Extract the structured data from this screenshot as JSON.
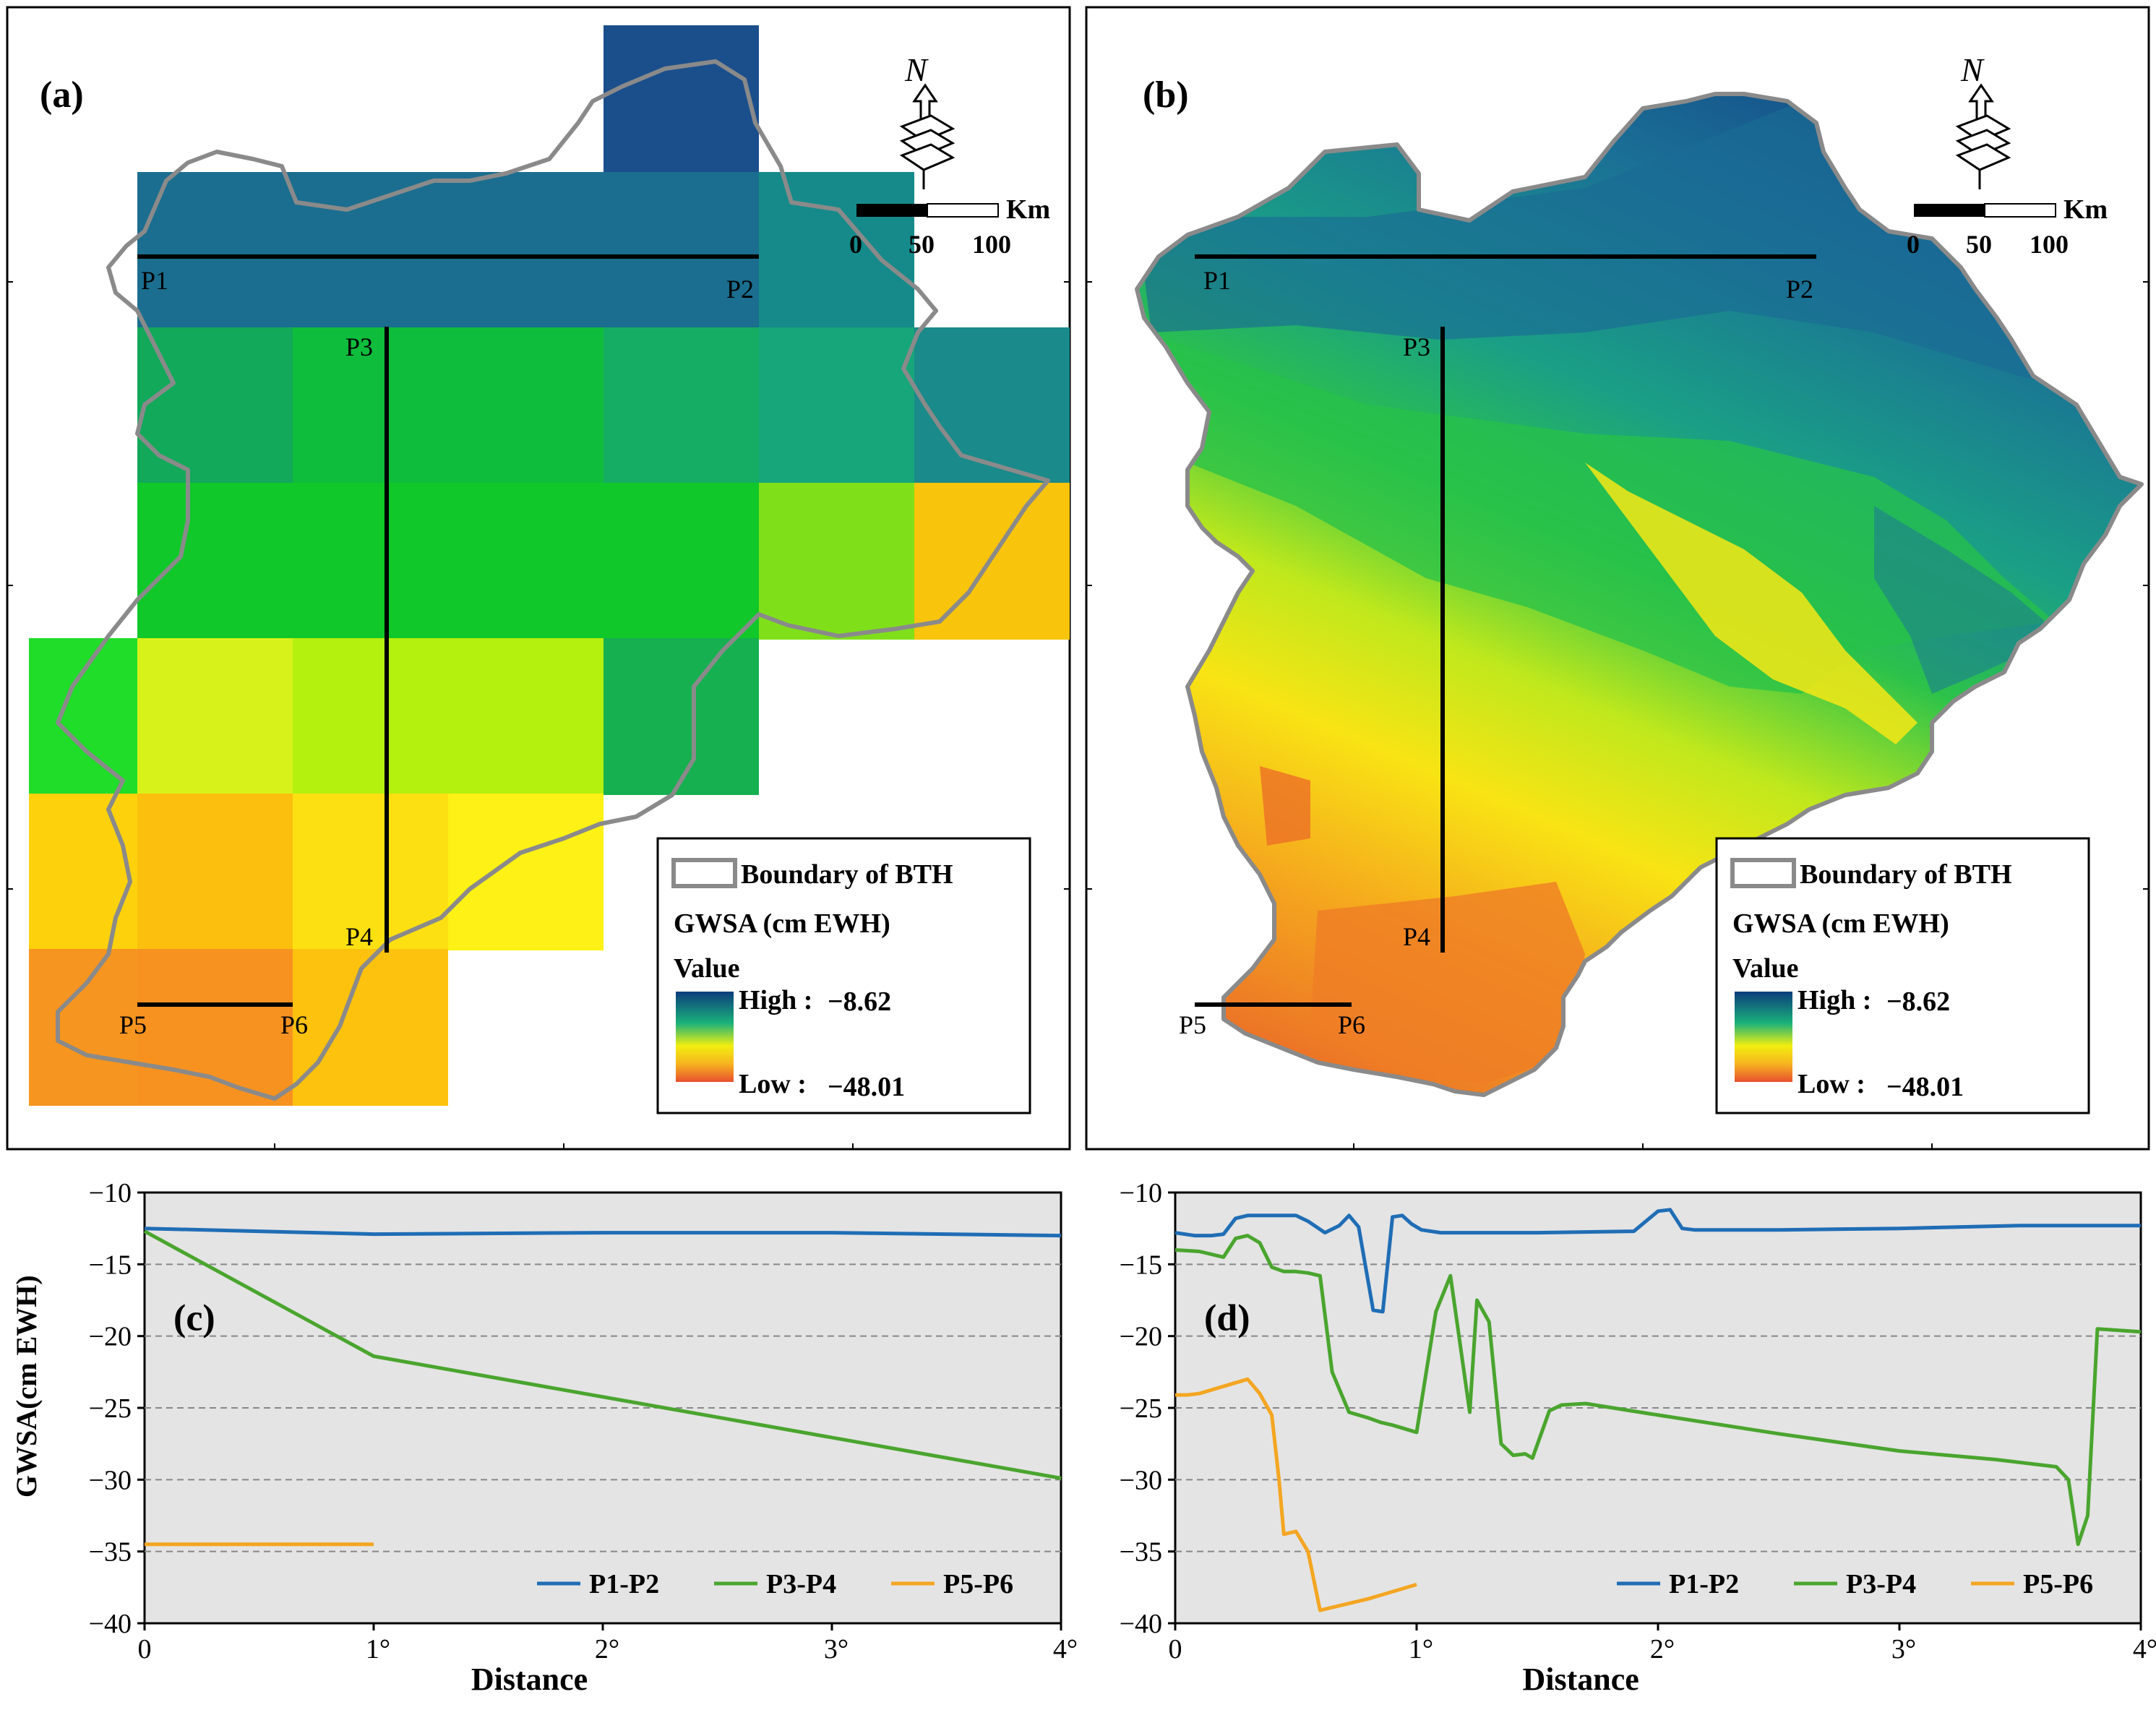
{
  "colors": {
    "line_p1p2": "#1f6db5",
    "line_p3p4": "#4aa52e",
    "line_p5p6": "#f4a622",
    "plot_bg": "#e4e4e4",
    "high": "#0b3c7d",
    "low": "#e8502e",
    "grid": "#888888"
  },
  "map_a": {
    "label": "(a)",
    "north": "N",
    "scale_unit": "Km",
    "scale_ticks": [
      "0",
      "50",
      "100"
    ],
    "points": [
      "P1",
      "P2",
      "P3",
      "P4",
      "P5",
      "P6"
    ],
    "legend": {
      "boundary_label": "Boundary of BTH",
      "title": "GWSA (cm EWH)",
      "value_label": "Value",
      "high_label": "High :",
      "high_value": "−8.62",
      "low_label": "Low :",
      "low_value": "−48.01"
    }
  },
  "map_b": {
    "label": "(b)",
    "north": "N",
    "scale_unit": "Km",
    "scale_ticks": [
      "0",
      "50",
      "100"
    ],
    "points": [
      "P1",
      "P2",
      "P3",
      "P4",
      "P5",
      "P6"
    ],
    "legend": {
      "boundary_label": "Boundary of BTH",
      "title": "GWSA (cm EWH)",
      "value_label": "Value",
      "high_label": "High :",
      "high_value": "−8.62",
      "low_label": "Low :",
      "low_value": "−48.01"
    }
  },
  "chart_data": [
    {
      "id": "c",
      "label": "(c)",
      "type": "line",
      "xlabel": "Distance",
      "ylabel": "GWSA(cm EWH)",
      "xlim": [
        0,
        4
      ],
      "ylim": [
        -40,
        -10
      ],
      "x_ticks": [
        0,
        1,
        2,
        3,
        4
      ],
      "x_tick_labels": [
        "0",
        "1°",
        "2°",
        "3°",
        "4°"
      ],
      "y_ticks": [
        -40,
        -35,
        -30,
        -25,
        -20,
        -15,
        -10
      ],
      "y_tick_labels": [
        "−40",
        "−35",
        "−30",
        "−25",
        "−20",
        "−15",
        "−10"
      ],
      "grid": "horizontal dashed",
      "legend_position": "bottom-right",
      "series": [
        {
          "name": "P1-P2",
          "x": [
            0,
            1,
            2,
            3,
            4
          ],
          "y": [
            -12.5,
            -12.9,
            -12.8,
            -12.8,
            -13.0
          ]
        },
        {
          "name": "P3-P4",
          "x": [
            0,
            1,
            4
          ],
          "y": [
            -12.7,
            -21.4,
            -29.9
          ]
        },
        {
          "name": "P5-P6",
          "x": [
            0,
            1
          ],
          "y": [
            -34.5,
            -34.5
          ]
        }
      ]
    },
    {
      "id": "d",
      "label": "(d)",
      "type": "line",
      "xlabel": "Distance",
      "ylabel": "",
      "xlim": [
        0,
        4
      ],
      "ylim": [
        -40,
        -10
      ],
      "x_ticks": [
        0,
        1,
        2,
        3,
        4
      ],
      "x_tick_labels": [
        "0",
        "1°",
        "2°",
        "3°",
        "4°"
      ],
      "y_ticks": [
        -40,
        -35,
        -30,
        -25,
        -20,
        -15,
        -10
      ],
      "y_tick_labels": [
        "−40",
        "−35",
        "−30",
        "−25",
        "−20",
        "−15",
        "−10"
      ],
      "grid": "horizontal dashed",
      "legend_position": "bottom-right",
      "series": [
        {
          "name": "P1-P2",
          "x": [
            0,
            0.08,
            0.15,
            0.2,
            0.25,
            0.3,
            0.4,
            0.5,
            0.55,
            0.62,
            0.68,
            0.72,
            0.76,
            0.82,
            0.86,
            0.9,
            0.94,
            0.98,
            1.02,
            1.1,
            1.5,
            1.9,
            2.0,
            2.05,
            2.1,
            2.15,
            2.5,
            3.0,
            3.5,
            4.0
          ],
          "y": [
            -12.8,
            -13.0,
            -13.0,
            -12.9,
            -11.8,
            -11.6,
            -11.6,
            -11.6,
            -12.0,
            -12.8,
            -12.3,
            -11.6,
            -12.4,
            -18.2,
            -18.3,
            -11.7,
            -11.6,
            -12.2,
            -12.6,
            -12.8,
            -12.8,
            -12.7,
            -11.3,
            -11.2,
            -12.5,
            -12.6,
            -12.6,
            -12.5,
            -12.3,
            -12.3
          ]
        },
        {
          "name": "P3-P4",
          "x": [
            0,
            0.1,
            0.2,
            0.25,
            0.3,
            0.35,
            0.4,
            0.45,
            0.5,
            0.55,
            0.6,
            0.65,
            0.72,
            0.8,
            0.85,
            0.9,
            0.96,
            1.0,
            1.08,
            1.14,
            1.22,
            1.25,
            1.3,
            1.35,
            1.4,
            1.45,
            1.48,
            1.55,
            1.6,
            1.7,
            2.0,
            2.5,
            3.0,
            3.4,
            3.65,
            3.7,
            3.74,
            3.78,
            3.82,
            4.0
          ],
          "y": [
            -14.0,
            -14.1,
            -14.5,
            -13.2,
            -13.0,
            -13.5,
            -15.2,
            -15.5,
            -15.5,
            -15.6,
            -15.8,
            -22.5,
            -25.3,
            -25.7,
            -26.0,
            -26.2,
            -26.5,
            -26.7,
            -18.3,
            -15.8,
            -25.3,
            -17.5,
            -19.0,
            -27.5,
            -28.3,
            -28.2,
            -28.5,
            -25.2,
            -24.8,
            -24.7,
            -25.5,
            -26.8,
            -28.0,
            -28.6,
            -29.1,
            -30.0,
            -34.5,
            -32.5,
            -19.5,
            -19.7
          ]
        },
        {
          "name": "P5-P6",
          "x": [
            0,
            0.05,
            0.1,
            0.2,
            0.3,
            0.35,
            0.4,
            0.43,
            0.45,
            0.5,
            0.55,
            0.6,
            0.8,
            1.0
          ],
          "y": [
            -24.1,
            -24.1,
            -24.0,
            -23.5,
            -23.0,
            -24.0,
            -25.5,
            -30.0,
            -33.8,
            -33.6,
            -35.0,
            -39.1,
            -38.3,
            -37.3
          ]
        }
      ]
    }
  ]
}
